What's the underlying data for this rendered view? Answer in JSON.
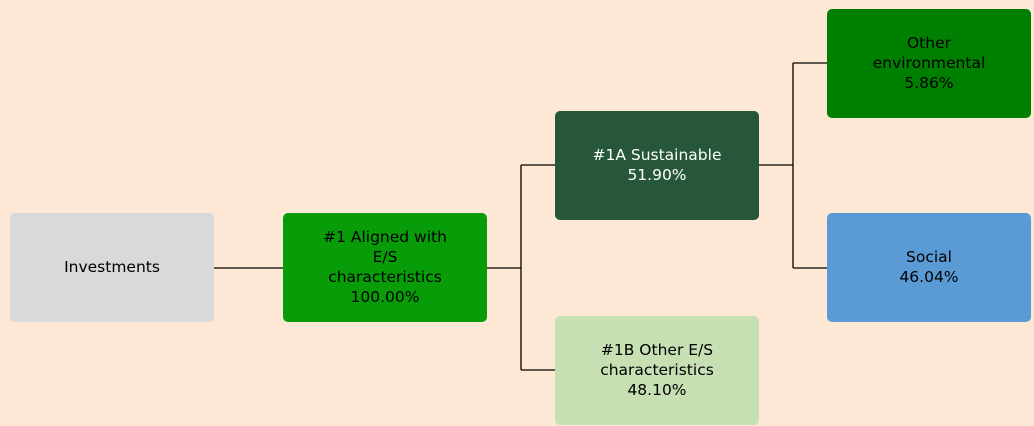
{
  "nodes": [
    {
      "label": [
        "Investments"
      ],
      "value": null
    },
    {
      "label": [
        "#1 Aligned with",
        "E/S",
        "characteristics"
      ],
      "value": "100.00%"
    },
    {
      "label": [
        "#1A Sustainable"
      ],
      "value": "51.90%"
    },
    {
      "label": [
        "#1B Other E/S",
        "characteristics"
      ],
      "value": "48.10%"
    },
    {
      "label": [
        "Other",
        "environmental"
      ],
      "value": "5.86%"
    },
    {
      "label": [
        "Social"
      ],
      "value": "46.04%"
    }
  ]
}
